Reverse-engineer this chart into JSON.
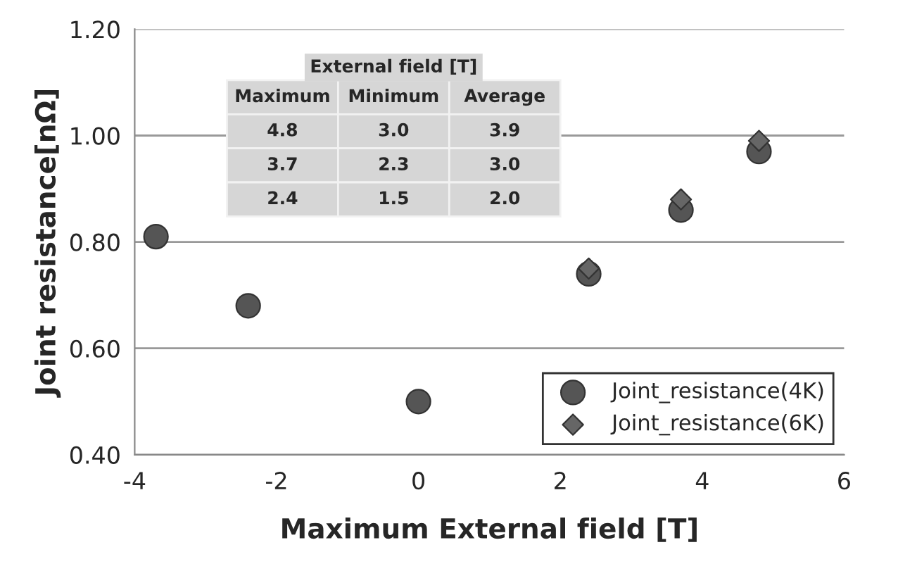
{
  "chart_data": {
    "type": "scatter",
    "xlabel": "Maximum External field [T]",
    "ylabel": "Joint resistance[nΩ]",
    "xlim": [
      -4,
      6
    ],
    "xticks": [
      -4,
      -2,
      0,
      2,
      4,
      6
    ],
    "ylim": [
      0.4,
      1.2
    ],
    "yticks": [
      {
        "value": 0.4,
        "label": "0.40"
      },
      {
        "value": 0.6,
        "label": "0.60"
      },
      {
        "value": 0.8,
        "label": "0.80"
      },
      {
        "value": 1.0,
        "label": "1.00"
      },
      {
        "value": 1.2,
        "label": "1.20"
      }
    ],
    "grid": "y",
    "legend": "bottom right",
    "series": [
      {
        "name": "Joint_resistance(4K)",
        "color": "#555555",
        "marker": "circle",
        "x": [
          -3.7,
          -2.4,
          0,
          2.4,
          3.7,
          4.8
        ],
        "values": [
          0.81,
          0.68,
          0.5,
          0.74,
          0.86,
          0.97
        ]
      },
      {
        "name": "Joint_resistance(6K)",
        "color": "#666666",
        "marker": "diamond",
        "x": [
          2.4,
          3.7,
          4.8
        ],
        "values": [
          0.75,
          0.88,
          0.99
        ]
      }
    ],
    "annotations": [
      "External field [T]",
      "Maximum",
      "Minimum",
      "Average",
      "4.8",
      "3.0",
      "3.9",
      "3.7",
      "2.3",
      "3.0",
      "2.4",
      "1.5",
      "2.0"
    ]
  }
}
